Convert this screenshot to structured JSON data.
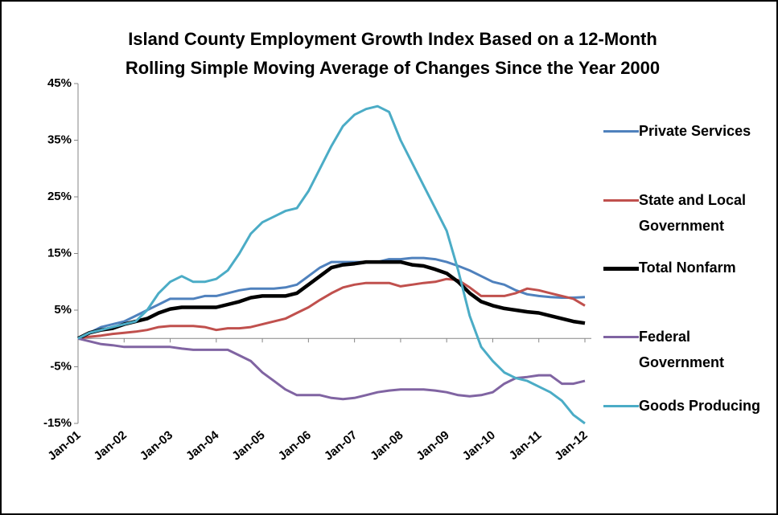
{
  "chart_data": {
    "type": "line",
    "title": [
      "Island County Employment Growth Index Based on a 12-Month",
      "Rolling Simple Moving Average of  Changes Since the Year 2000"
    ],
    "categories": [
      "Jan-01",
      null,
      null,
      null,
      "Jan-02",
      null,
      null,
      null,
      "Jan-03",
      null,
      null,
      null,
      "Jan-04",
      null,
      null,
      null,
      "Jan-05",
      null,
      null,
      null,
      "Jan-06",
      null,
      null,
      null,
      "Jan-07",
      null,
      null,
      null,
      "Jan-08",
      null,
      null,
      null,
      "Jan-09",
      null,
      null,
      null,
      "Jan-10",
      null,
      null,
      null,
      "Jan-11",
      null,
      null,
      null,
      "Jan-12"
    ],
    "ylim": [
      -15,
      45
    ],
    "yticks": [
      {
        "value": -15,
        "label": "-15%"
      },
      {
        "value": -5,
        "label": "-5%"
      },
      {
        "value": 5,
        "label": "5%"
      },
      {
        "value": 15,
        "label": "15%"
      },
      {
        "value": 25,
        "label": "25%"
      },
      {
        "value": 35,
        "label": "35%"
      },
      {
        "value": 45,
        "label": "45%"
      }
    ],
    "grid": false,
    "legend": "right",
    "series": [
      {
        "name": "Private Services",
        "color": "#4f81bd",
        "values": [
          0,
          1,
          2,
          2.5,
          3,
          4,
          5,
          6,
          7,
          7,
          7,
          7.5,
          7.5,
          8,
          8.5,
          8.8,
          8.8,
          8.8,
          9,
          9.5,
          11,
          12.5,
          13.5,
          13.5,
          13.5,
          13.5,
          13.5,
          14,
          14,
          14.2,
          14.2,
          14,
          13.5,
          12.8,
          12,
          11,
          10,
          9.5,
          8.5,
          7.8,
          7.5,
          7.3,
          7.2,
          7.2,
          7.3
        ]
      },
      {
        "name": "State and Local Government",
        "color": "#c0504d",
        "values": [
          0,
          0.3,
          0.5,
          0.8,
          1,
          1.2,
          1.5,
          2,
          2.2,
          2.2,
          2.2,
          2,
          1.5,
          1.8,
          1.8,
          2,
          2.5,
          3,
          3.5,
          4.5,
          5.5,
          6.8,
          8,
          9,
          9.5,
          9.8,
          9.8,
          9.8,
          9.2,
          9.5,
          9.8,
          10,
          10.5,
          10.3,
          9,
          7.5,
          7.5,
          7.5,
          8,
          8.8,
          8.5,
          8,
          7.5,
          7,
          5.8
        ]
      },
      {
        "name": "Total Nonfarm",
        "color": "#000000",
        "values": [
          0,
          1,
          1.5,
          1.8,
          2.5,
          3,
          3.5,
          4.5,
          5.2,
          5.5,
          5.5,
          5.5,
          5.5,
          6,
          6.5,
          7.2,
          7.5,
          7.5,
          7.5,
          8,
          9.5,
          11,
          12.5,
          13,
          13.2,
          13.5,
          13.5,
          13.5,
          13.5,
          13,
          12.8,
          12.2,
          11.5,
          10,
          8,
          6.5,
          5.8,
          5.3,
          5,
          4.7,
          4.5,
          4,
          3.5,
          3,
          2.7
        ]
      },
      {
        "name": "Federal Government",
        "color": "#8064a2",
        "values": [
          0,
          -0.5,
          -1,
          -1.2,
          -1.5,
          -1.5,
          -1.5,
          -1.5,
          -1.5,
          -1.8,
          -2,
          -2,
          -2,
          -2,
          -3,
          -4,
          -6,
          -7.5,
          -9,
          -10,
          -10,
          -10,
          -10.5,
          -10.7,
          -10.5,
          -10,
          -9.5,
          -9.2,
          -9,
          -9,
          -9,
          -9.2,
          -9.5,
          -10,
          -10.2,
          -10,
          -9.5,
          -8,
          -7,
          -6.8,
          -6.5,
          -6.5,
          -8,
          -8,
          -7.5
        ]
      },
      {
        "name": "Goods Producing",
        "color": "#4bacc6",
        "values": [
          0,
          1,
          1.5,
          2,
          2.5,
          3,
          5,
          8,
          10,
          11,
          10,
          10,
          10.5,
          12,
          15,
          18.5,
          20.5,
          21.5,
          22.5,
          23,
          26,
          30,
          34,
          37.5,
          39.5,
          40.5,
          41,
          40,
          35,
          31,
          27,
          23,
          19,
          12,
          4,
          -1.5,
          -4,
          -6,
          -7,
          -7.5,
          -8.5,
          -9.5,
          -11,
          -13.5,
          -15
        ]
      }
    ]
  }
}
